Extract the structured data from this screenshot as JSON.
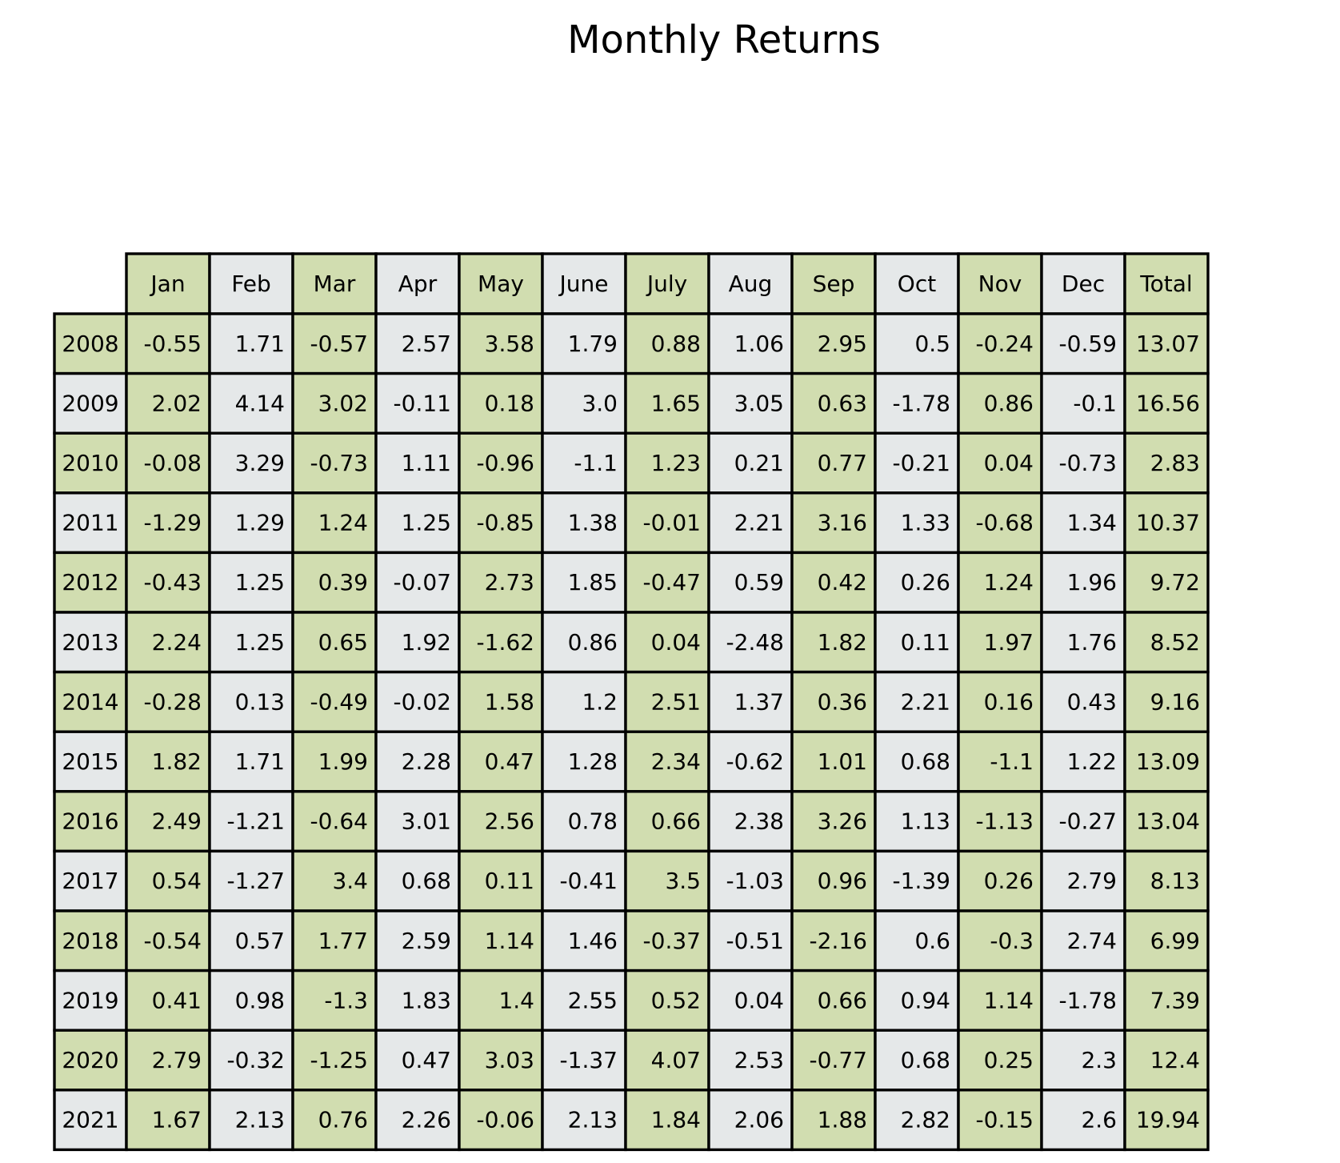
{
  "chart_data": {
    "type": "table",
    "title": "Monthly Returns",
    "columns": [
      "Jan",
      "Feb",
      "Mar",
      "Apr",
      "May",
      "June",
      "July",
      "Aug",
      "Sep",
      "Oct",
      "Nov",
      "Dec",
      "Total"
    ],
    "rows": [
      {
        "year": "2008",
        "values": [
          "-0.55",
          "1.71",
          "-0.57",
          "2.57",
          "3.58",
          "1.79",
          "0.88",
          "1.06",
          "2.95",
          "0.5",
          "-0.24",
          "-0.59",
          "13.07"
        ]
      },
      {
        "year": "2009",
        "values": [
          "2.02",
          "4.14",
          "3.02",
          "-0.11",
          "0.18",
          "3.0",
          "1.65",
          "3.05",
          "0.63",
          "-1.78",
          "0.86",
          "-0.1",
          "16.56"
        ]
      },
      {
        "year": "2010",
        "values": [
          "-0.08",
          "3.29",
          "-0.73",
          "1.11",
          "-0.96",
          "-1.1",
          "1.23",
          "0.21",
          "0.77",
          "-0.21",
          "0.04",
          "-0.73",
          "2.83"
        ]
      },
      {
        "year": "2011",
        "values": [
          "-1.29",
          "1.29",
          "1.24",
          "1.25",
          "-0.85",
          "1.38",
          "-0.01",
          "2.21",
          "3.16",
          "1.33",
          "-0.68",
          "1.34",
          "10.37"
        ]
      },
      {
        "year": "2012",
        "values": [
          "-0.43",
          "1.25",
          "0.39",
          "-0.07",
          "2.73",
          "1.85",
          "-0.47",
          "0.59",
          "0.42",
          "0.26",
          "1.24",
          "1.96",
          "9.72"
        ]
      },
      {
        "year": "2013",
        "values": [
          "2.24",
          "1.25",
          "0.65",
          "1.92",
          "-1.62",
          "0.86",
          "0.04",
          "-2.48",
          "1.82",
          "0.11",
          "1.97",
          "1.76",
          "8.52"
        ]
      },
      {
        "year": "2014",
        "values": [
          "-0.28",
          "0.13",
          "-0.49",
          "-0.02",
          "1.58",
          "1.2",
          "2.51",
          "1.37",
          "0.36",
          "2.21",
          "0.16",
          "0.43",
          "9.16"
        ]
      },
      {
        "year": "2015",
        "values": [
          "1.82",
          "1.71",
          "1.99",
          "2.28",
          "0.47",
          "1.28",
          "2.34",
          "-0.62",
          "1.01",
          "0.68",
          "-1.1",
          "1.22",
          "13.09"
        ]
      },
      {
        "year": "2016",
        "values": [
          "2.49",
          "-1.21",
          "-0.64",
          "3.01",
          "2.56",
          "0.78",
          "0.66",
          "2.38",
          "3.26",
          "1.13",
          "-1.13",
          "-0.27",
          "13.04"
        ]
      },
      {
        "year": "2017",
        "values": [
          "0.54",
          "-1.27",
          "3.4",
          "0.68",
          "0.11",
          "-0.41",
          "3.5",
          "-1.03",
          "0.96",
          "-1.39",
          "0.26",
          "2.79",
          "8.13"
        ]
      },
      {
        "year": "2018",
        "values": [
          "-0.54",
          "0.57",
          "1.77",
          "2.59",
          "1.14",
          "1.46",
          "-0.37",
          "-0.51",
          "-2.16",
          "0.6",
          "-0.3",
          "2.74",
          "6.99"
        ]
      },
      {
        "year": "2019",
        "values": [
          "0.41",
          "0.98",
          "-1.3",
          "1.83",
          "1.4",
          "2.55",
          "0.52",
          "0.04",
          "0.66",
          "0.94",
          "1.14",
          "-1.78",
          "7.39"
        ]
      },
      {
        "year": "2020",
        "values": [
          "2.79",
          "-0.32",
          "-1.25",
          "0.47",
          "3.03",
          "-1.37",
          "4.07",
          "2.53",
          "-0.77",
          "0.68",
          "0.25",
          "2.3",
          "12.4"
        ]
      },
      {
        "year": "2021",
        "values": [
          "1.67",
          "2.13",
          "0.76",
          "2.26",
          "-0.06",
          "2.13",
          "1.84",
          "2.06",
          "1.88",
          "2.82",
          "-0.15",
          "2.6",
          "19.94"
        ]
      }
    ],
    "colors": {
      "green": "#d1ddb0",
      "gray": "#e5e8e9",
      "border": "#000000"
    }
  }
}
